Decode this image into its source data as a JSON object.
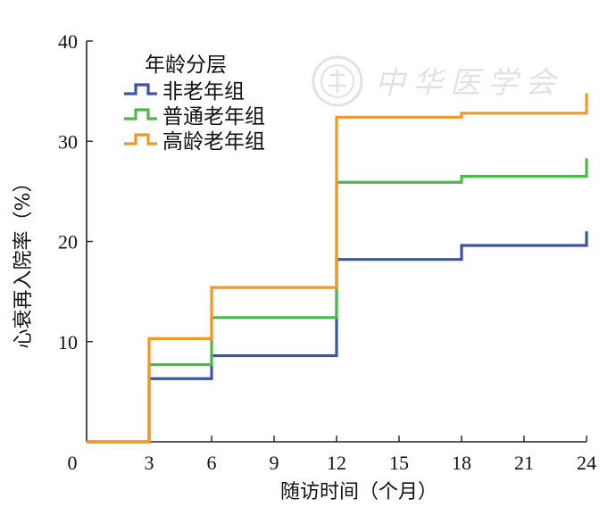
{
  "chart_data": {
    "type": "line",
    "step": true,
    "title": "",
    "xlabel": "随访时间（个月）",
    "ylabel": "心衰再入院率（%）",
    "xlim": [
      0,
      24
    ],
    "ylim": [
      0,
      40
    ],
    "xticks": [
      0,
      3,
      6,
      9,
      12,
      15,
      18,
      21,
      24
    ],
    "yticks": [
      10,
      20,
      30,
      40
    ],
    "y_origin_label": "",
    "grid": false,
    "legend": {
      "title": "年龄分层",
      "placement": "top-left"
    },
    "series": [
      {
        "name": "非老年组",
        "color": "#3c55a8",
        "x": [
          0,
          3,
          6,
          12,
          18,
          24
        ],
        "y": [
          0,
          6.3,
          8.6,
          18.2,
          19.6,
          21.0
        ]
      },
      {
        "name": "普通老年组",
        "color": "#4cba4a",
        "x": [
          0,
          3,
          6,
          12,
          18,
          24
        ],
        "y": [
          0,
          7.7,
          12.4,
          25.9,
          26.5,
          28.3
        ]
      },
      {
        "name": "高龄老年组",
        "color": "#f29724",
        "x": [
          0,
          3,
          6,
          12,
          18,
          24
        ],
        "y": [
          0,
          10.3,
          15.4,
          32.4,
          32.8,
          34.8
        ]
      }
    ]
  },
  "watermark": {
    "text": "中华医学会"
  }
}
